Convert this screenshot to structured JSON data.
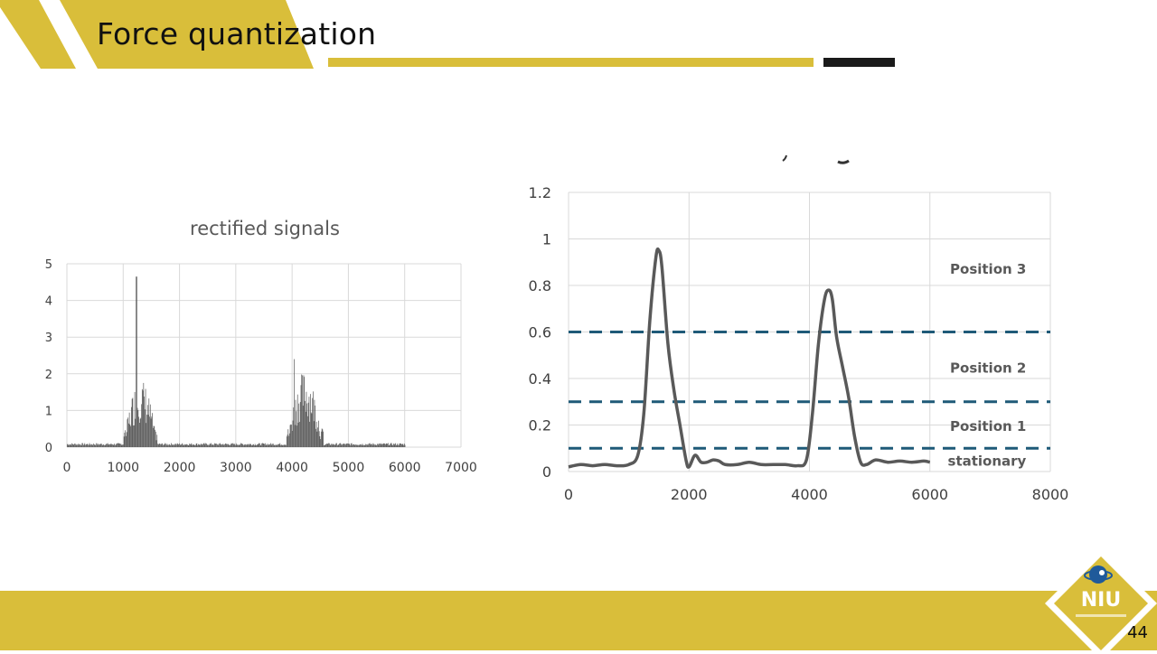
{
  "slide": {
    "title": "Force quantization",
    "page_number": "44",
    "logo_text": "NIU"
  },
  "colors": {
    "brand_gold": "#d9be3a",
    "dark_bar": "#1a1a1a",
    "trace": "#595959",
    "threshold": "#1f5a78",
    "grid": "#d9d9d9"
  },
  "chart_data": [
    {
      "type": "bar",
      "title": "rectified signals",
      "xlabel": "",
      "ylabel": "",
      "xlim": [
        0,
        7000
      ],
      "ylim": [
        0,
        5
      ],
      "xticks": [
        0,
        1000,
        2000,
        3000,
        4000,
        5000,
        6000,
        7000
      ],
      "yticks": [
        0,
        1,
        2,
        3,
        4,
        5
      ],
      "grid": true,
      "legend": "none",
      "bursts": [
        {
          "x_start": 1000,
          "x_end": 1600,
          "peak_x": 1230,
          "peak_y": 4.65,
          "typical_max": 1.9
        },
        {
          "x_start": 3900,
          "x_end": 4550,
          "peak_x": 4030,
          "peak_y": 2.4,
          "typical_max": 2.1
        }
      ],
      "baseline": 0.08,
      "x_data_end": 6000
    },
    {
      "type": "line",
      "title": "",
      "xlabel": "",
      "ylabel": "",
      "xlim": [
        0,
        8000
      ],
      "ylim": [
        0,
        1.2
      ],
      "xticks": [
        0,
        2000,
        4000,
        6000,
        8000
      ],
      "yticks": [
        "0",
        "0.2",
        "0.4",
        "0.6",
        "0.8",
        "1",
        "1.2"
      ],
      "grid": true,
      "legend": "none",
      "series": [
        {
          "x": [
            0,
            200,
            400,
            600,
            800,
            1000,
            1150,
            1250,
            1350,
            1450,
            1500,
            1550,
            1650,
            1750,
            1850,
            1950,
            2000,
            2100,
            2200,
            2300,
            2400,
            2500,
            2600,
            2800,
            3000,
            3200,
            3400,
            3600,
            3800,
            3950,
            4050,
            4150,
            4250,
            4320,
            4380,
            4450,
            4550,
            4650,
            4750,
            4850,
            4950,
            5100,
            5300,
            5500,
            5700,
            5900,
            6000
          ],
          "y": [
            0.02,
            0.03,
            0.025,
            0.03,
            0.025,
            0.03,
            0.07,
            0.25,
            0.65,
            0.92,
            0.95,
            0.88,
            0.55,
            0.35,
            0.2,
            0.05,
            0.02,
            0.07,
            0.04,
            0.04,
            0.05,
            0.045,
            0.03,
            0.03,
            0.04,
            0.03,
            0.03,
            0.03,
            0.025,
            0.05,
            0.25,
            0.55,
            0.74,
            0.78,
            0.74,
            0.58,
            0.45,
            0.32,
            0.15,
            0.04,
            0.03,
            0.05,
            0.04,
            0.045,
            0.04,
            0.045,
            0.04
          ]
        }
      ],
      "thresholds": [
        0.1,
        0.3,
        0.6
      ],
      "annotations": [
        "Position 3",
        "Position 2",
        "Position 1",
        "stationary"
      ]
    }
  ]
}
